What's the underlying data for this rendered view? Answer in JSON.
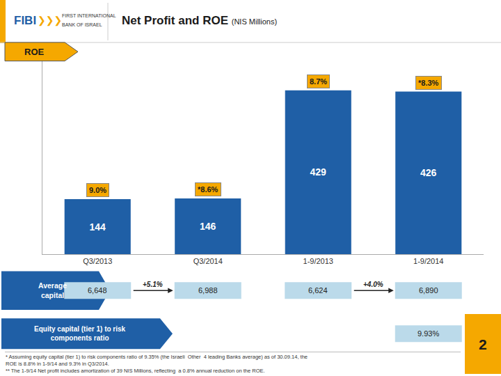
{
  "chart_data": {
    "type": "bar",
    "title": "Net Profit and ROE",
    "subtitle": "(NIS Millions)",
    "categories": [
      "Q3/2013",
      "Q3/2014",
      "1-9/2013",
      "1-9/2014"
    ],
    "values": [
      144,
      146,
      429,
      426
    ],
    "color": "#1F5FA6",
    "data_labels": true,
    "ylim": [
      0,
      520
    ],
    "grid": false,
    "tick_labels": "x",
    "annotations": {
      "header": {
        "brand": "FIBI",
        "logo": "❯❯❯",
        "bank": [
          "FIRST INTERNATIONAL",
          "BANK OF ISRAEL"
        ]
      },
      "roe": {
        "label": "ROE",
        "values": [
          "9.0%",
          "*8.6%",
          "8.7%",
          "*8.3%"
        ],
        "color": "#F5A800"
      },
      "average_capital": {
        "label": "Average\ncapital",
        "values": [
          "6,648",
          "6,988",
          "6,624",
          "6,890"
        ],
        "changes": [
          "+5.1%",
          "+4.0%"
        ],
        "color": "#BBDAEA"
      },
      "equity_ratio": {
        "label": "Equity capital (tier 1) to risk\ncomponents ratio",
        "values": [
          null,
          null,
          null,
          "9.93%"
        ],
        "color": "#BBDAEA"
      },
      "footnotes": [
        "* Assuming equity capital (tier 1) to risk components ratio of 9.35% (the Israeli  Other  4 leading Banks average) as of 30.09.14, the",
        "ROE is 8.8% in 1-9/14 and 9.3% in Q3/2014.",
        "** The 1-9/14 Net profit includes amortization of 39 NIS Millions, reflecting  a 0.8% annual reduction on the ROE."
      ],
      "page": "2"
    }
  }
}
